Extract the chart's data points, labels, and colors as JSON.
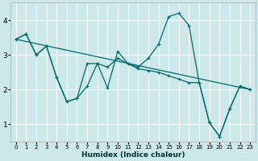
{
  "xlabel": "Humidex (Indice chaleur)",
  "ylabel": "",
  "background_color": "#cce8e8",
  "line_color": "#006b6b",
  "grid_color": "#ffffff",
  "xlim": [
    -0.5,
    23.5
  ],
  "ylim": [
    0.5,
    4.5
  ],
  "yticks": [
    1,
    2,
    3,
    4
  ],
  "xticks": [
    0,
    1,
    2,
    3,
    4,
    5,
    6,
    7,
    8,
    9,
    10,
    11,
    12,
    13,
    14,
    15,
    16,
    17,
    18,
    19,
    20,
    21,
    22,
    23
  ],
  "line1_x": [
    0,
    1,
    2,
    3,
    4,
    5,
    6,
    7,
    8,
    9,
    10,
    11,
    12,
    13,
    14,
    15,
    16,
    17,
    18,
    19,
    20,
    21,
    22,
    23
  ],
  "line1_y": [
    3.45,
    3.6,
    3.0,
    3.25,
    2.35,
    1.65,
    1.75,
    2.75,
    2.75,
    2.65,
    2.9,
    2.75,
    2.6,
    2.55,
    2.5,
    2.4,
    2.3,
    2.2,
    2.2,
    1.05,
    0.65,
    1.45,
    2.1,
    2.0
  ],
  "line2_x": [
    0,
    1,
    2,
    3,
    4,
    5,
    6,
    7,
    8,
    9,
    10,
    11,
    12,
    13,
    14,
    15,
    16,
    17,
    18,
    19,
    20,
    21,
    22,
    23
  ],
  "line2_y": [
    3.45,
    3.6,
    3.0,
    3.25,
    2.35,
    1.65,
    1.75,
    2.1,
    2.75,
    2.05,
    3.1,
    2.75,
    2.65,
    2.9,
    3.3,
    4.1,
    4.2,
    3.85,
    2.2,
    1.05,
    0.65,
    1.45,
    2.1,
    2.0
  ],
  "line3_x": [
    0,
    23
  ],
  "line3_y": [
    3.45,
    2.0
  ]
}
